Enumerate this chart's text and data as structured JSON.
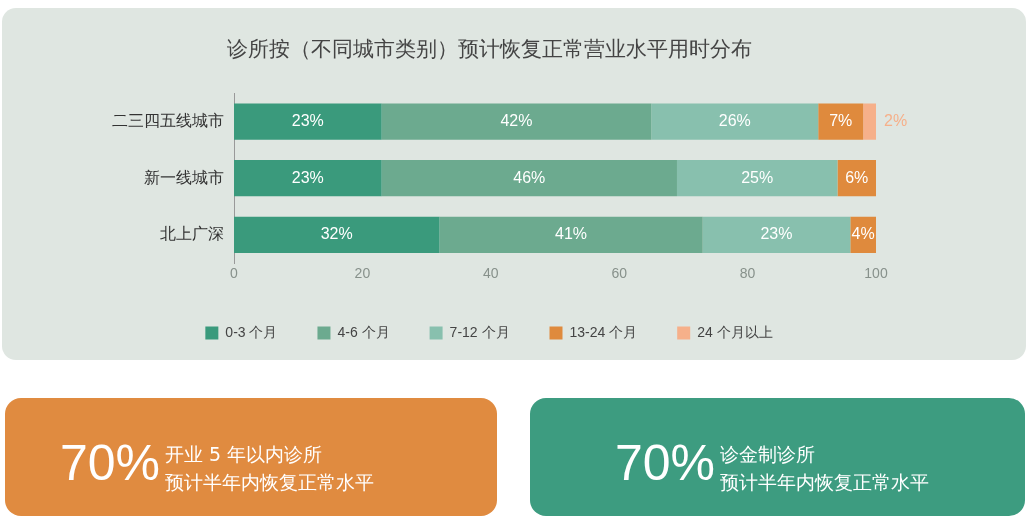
{
  "chart_data": [
    {
      "type": "bar",
      "orientation": "horizontal",
      "stacked": true,
      "title": "诊所按（不同城市类别）预计恢复正常营业水平用时分布",
      "categories": [
        "二三四五线城市",
        "新一线城市",
        "北上广深"
      ],
      "series": [
        {
          "name": "0-3 个月",
          "color": "#3a9a7c",
          "values": [
            23,
            23,
            32
          ],
          "value_labels": [
            "23%",
            "23%",
            "32%"
          ]
        },
        {
          "name": "4-6 个月",
          "color": "#6caa8f",
          "values": [
            42,
            46,
            41
          ],
          "value_labels": [
            "42%",
            "46%",
            "41%"
          ]
        },
        {
          "name": "7-12 个月",
          "color": "#88c0ae",
          "values": [
            26,
            25,
            23
          ],
          "value_labels": [
            "26%",
            "25%",
            "23%"
          ]
        },
        {
          "name": "13-24 个月",
          "color": "#df8a3d",
          "values": [
            7,
            6,
            4
          ],
          "value_labels": [
            "7%",
            "6%",
            "4%"
          ]
        },
        {
          "name": "24 个月以上",
          "color": "#f6b08a",
          "values": [
            2,
            null,
            null
          ],
          "value_labels": [
            "2%",
            null,
            null
          ]
        }
      ],
      "xlim": [
        0,
        100
      ],
      "xticks": [
        0,
        20,
        40,
        60,
        80,
        100
      ],
      "grid": false,
      "legend": "bottom"
    },
    {
      "type": "other",
      "title": "70%",
      "color": "#e08b40",
      "annotations": [
        "开业 5 年以内诊所",
        "预计半年内恢复正常水平"
      ]
    },
    {
      "type": "other",
      "title": "70%",
      "color": "#3d9c80",
      "annotations": [
        "诊金制诊所",
        "预计半年内恢复正常水平"
      ]
    }
  ]
}
